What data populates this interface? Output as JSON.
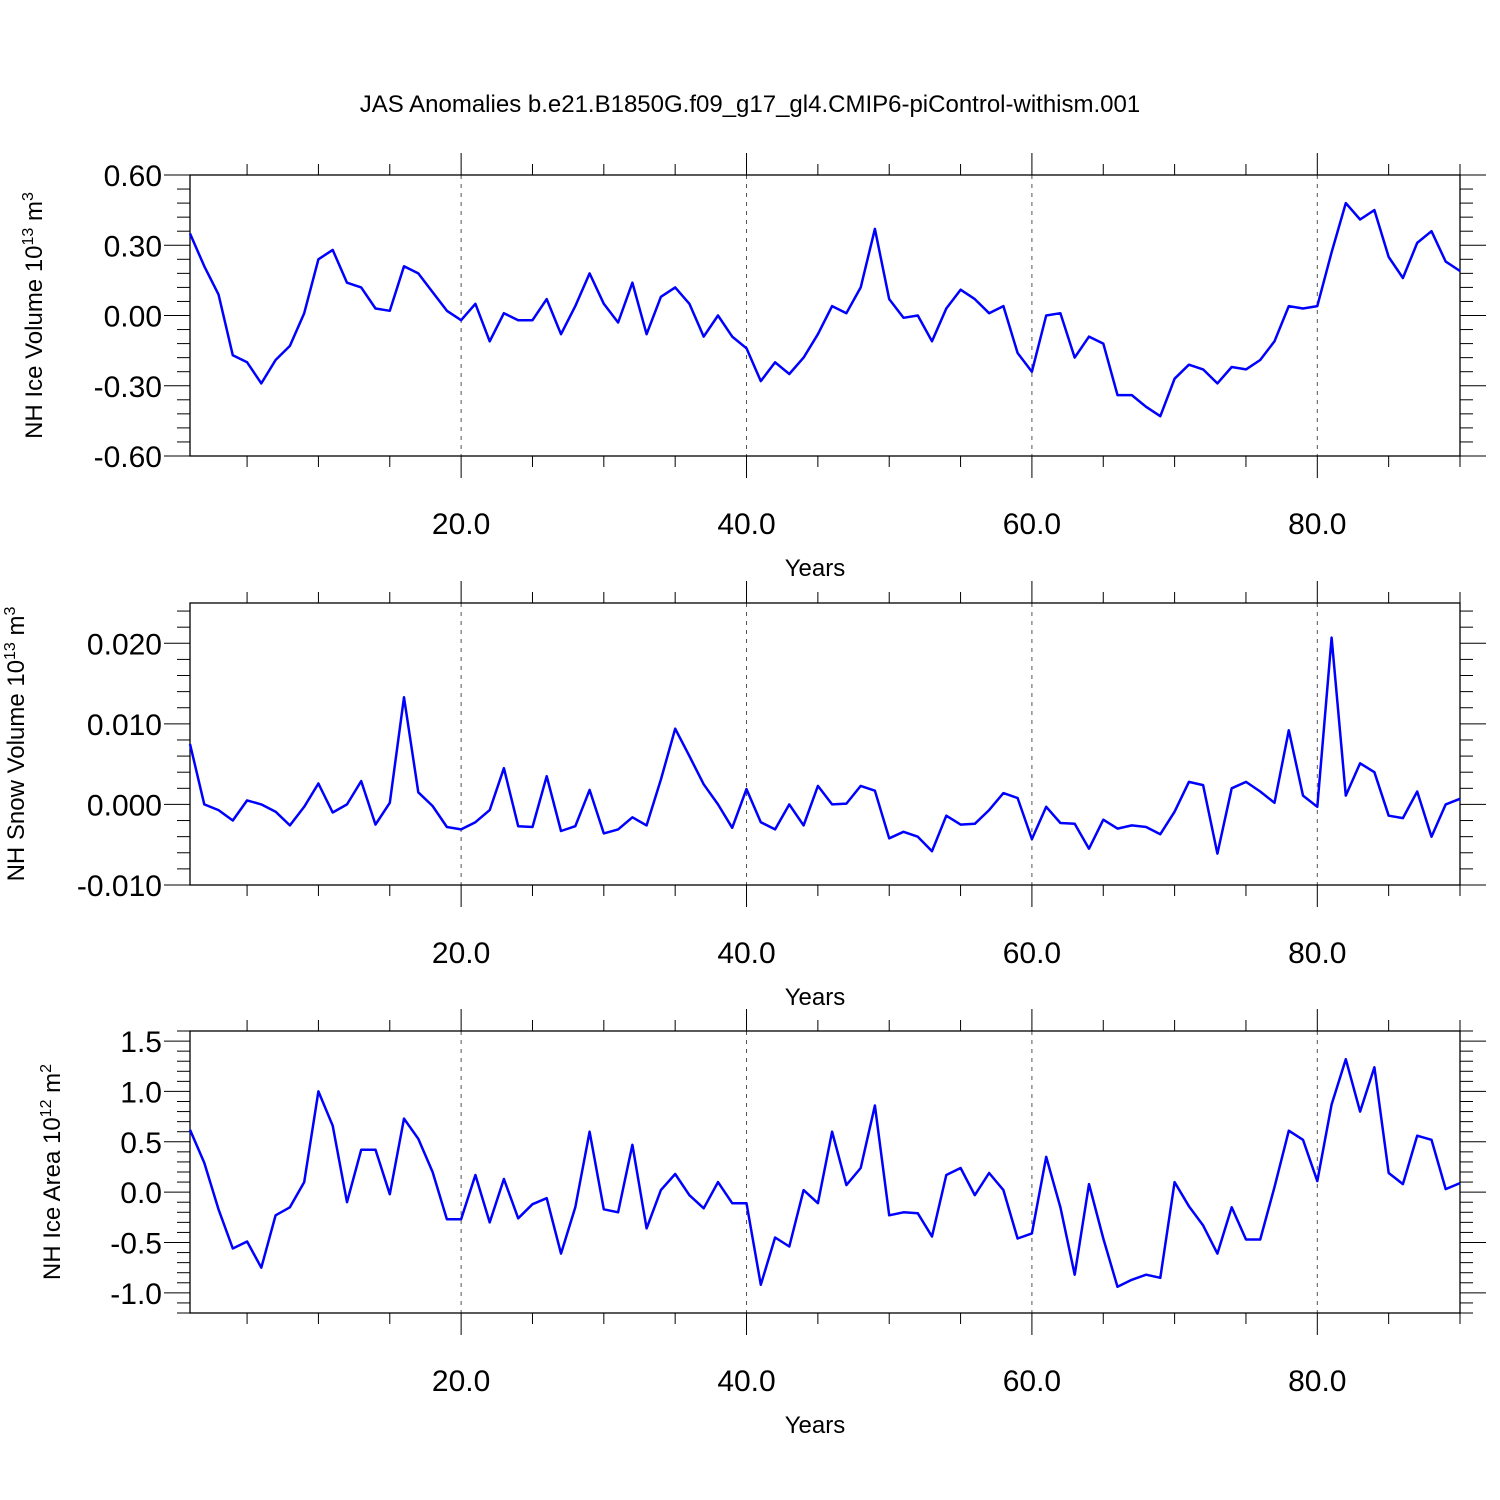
{
  "title": "JAS Anomalies b.e21.B1850G.f09_g17_gl4.CMIP6-piControl-withism.001",
  "colors": {
    "line": "#0000ff",
    "frame": "#000000",
    "grid": "#555555"
  },
  "chart_data": [
    {
      "type": "line",
      "xlabel": "Years",
      "ylabel": {
        "main": "NH Ice Volume 10",
        "exp": "13",
        "unit": " m",
        "unit_exp": "3"
      },
      "xlim": [
        1,
        90
      ],
      "ylim": [
        -0.6,
        0.6
      ],
      "xticks": [
        20,
        40,
        60,
        80
      ],
      "xtick_labels": [
        "20.0",
        "40.0",
        "60.0",
        "80.0"
      ],
      "yticks": [
        -0.6,
        -0.3,
        0.0,
        0.3,
        0.6
      ],
      "ytick_labels": [
        "-0.60",
        "-0.30",
        "0.00",
        "0.30",
        "0.60"
      ],
      "grid": "vertical dashed at x ticks",
      "series": [
        {
          "x_start": 1,
          "x_step": 1,
          "values": [
            0.35,
            0.21,
            0.09,
            -0.17,
            -0.2,
            -0.29,
            -0.19,
            -0.13,
            0.01,
            0.24,
            0.28,
            0.14,
            0.12,
            0.03,
            0.02,
            0.21,
            0.18,
            0.1,
            0.02,
            -0.02,
            0.05,
            -0.11,
            0.01,
            -0.02,
            -0.02,
            0.07,
            -0.08,
            0.04,
            0.18,
            0.05,
            -0.03,
            0.14,
            -0.08,
            0.08,
            0.12,
            0.05,
            -0.09,
            0.0,
            -0.09,
            -0.14,
            -0.28,
            -0.2,
            -0.25,
            -0.18,
            -0.08,
            0.04,
            0.01,
            0.12,
            0.37,
            0.07,
            -0.01,
            0.0,
            -0.11,
            0.03,
            0.11,
            0.07,
            0.01,
            0.04,
            -0.16,
            -0.24,
            0.0,
            0.01,
            -0.18,
            -0.09,
            -0.12,
            -0.34,
            -0.34,
            -0.39,
            -0.43,
            -0.27,
            -0.21,
            -0.23,
            -0.29,
            -0.22,
            -0.23,
            -0.19,
            -0.11,
            0.04,
            0.03,
            0.04,
            0.27,
            0.48,
            0.41,
            0.45,
            0.25,
            0.16,
            0.31,
            0.36,
            0.23,
            0.19
          ]
        }
      ]
    },
    {
      "type": "line",
      "xlabel": "Years",
      "ylabel": {
        "main": "NH Snow Volume 10",
        "exp": "13",
        "unit": " m",
        "unit_exp": "3"
      },
      "xlim": [
        1,
        90
      ],
      "ylim": [
        -0.01,
        0.025
      ],
      "xticks": [
        20,
        40,
        60,
        80
      ],
      "xtick_labels": [
        "20.0",
        "40.0",
        "60.0",
        "80.0"
      ],
      "yticks": [
        -0.01,
        0.0,
        0.01,
        0.02
      ],
      "ytick_labels": [
        "-0.010",
        "0.000",
        "0.010",
        "0.020"
      ],
      "grid": "vertical dashed at x ticks",
      "series": [
        {
          "x_start": 1,
          "x_step": 1,
          "values": [
            0.0075,
            0.0,
            -0.0007,
            -0.002,
            0.0005,
            0.0,
            -0.0009,
            -0.0026,
            -0.0003,
            0.0026,
            -0.001,
            0.0,
            0.0029,
            -0.0025,
            0.0002,
            0.0133,
            0.0015,
            -0.0002,
            -0.0028,
            -0.0031,
            -0.0022,
            -0.0007,
            0.0045,
            -0.0027,
            -0.0028,
            0.0035,
            -0.0033,
            -0.0027,
            0.0018,
            -0.0036,
            -0.0031,
            -0.0016,
            -0.0026,
            0.0031,
            0.0094,
            0.006,
            0.0025,
            0.0,
            -0.0029,
            0.0019,
            -0.0022,
            -0.0031,
            0.0,
            -0.0026,
            0.0023,
            0.0,
            0.0001,
            0.0023,
            0.0017,
            -0.0042,
            -0.0034,
            -0.004,
            -0.0058,
            -0.0014,
            -0.0025,
            -0.0024,
            -0.0007,
            0.0014,
            0.0008,
            -0.0043,
            -0.0003,
            -0.0023,
            -0.0024,
            -0.0055,
            -0.0019,
            -0.003,
            -0.0026,
            -0.0028,
            -0.0037,
            -0.0009,
            0.0028,
            0.0024,
            -0.0061,
            0.002,
            0.0028,
            0.0016,
            0.0002,
            0.0092,
            0.0011,
            -0.0003,
            0.0207,
            0.0011,
            0.0051,
            0.004,
            -0.0014,
            -0.0017,
            0.0016,
            -0.004,
            0.0,
            0.0007
          ]
        }
      ]
    },
    {
      "type": "line",
      "xlabel": "Years",
      "ylabel": {
        "main": "NH Ice Area 10",
        "exp": "12",
        "unit": " m",
        "unit_exp": "2"
      },
      "xlim": [
        1,
        90
      ],
      "ylim": [
        -1.2,
        1.6
      ],
      "xticks": [
        20,
        40,
        60,
        80
      ],
      "xtick_labels": [
        "20.0",
        "40.0",
        "60.0",
        "80.0"
      ],
      "yticks": [
        -1.0,
        -0.5,
        0.0,
        0.5,
        1.0,
        1.5
      ],
      "ytick_labels": [
        "-1.0",
        "-0.5",
        "0.0",
        "0.5",
        "1.0",
        "1.5"
      ],
      "grid": "vertical dashed at x ticks",
      "series": [
        {
          "x_start": 1,
          "x_step": 1,
          "values": [
            0.62,
            0.29,
            -0.17,
            -0.56,
            -0.49,
            -0.75,
            -0.23,
            -0.15,
            0.1,
            1.0,
            0.66,
            -0.1,
            0.42,
            0.42,
            -0.02,
            0.73,
            0.53,
            0.2,
            -0.27,
            -0.27,
            0.17,
            -0.3,
            0.13,
            -0.26,
            -0.12,
            -0.06,
            -0.61,
            -0.15,
            0.6,
            -0.17,
            -0.2,
            0.47,
            -0.36,
            0.02,
            0.18,
            -0.03,
            -0.16,
            0.1,
            -0.11,
            -0.11,
            -0.92,
            -0.45,
            -0.54,
            0.02,
            -0.11,
            0.6,
            0.07,
            0.24,
            0.86,
            -0.23,
            -0.2,
            -0.21,
            -0.44,
            0.17,
            0.24,
            -0.03,
            0.19,
            0.02,
            -0.46,
            -0.41,
            0.35,
            -0.15,
            -0.82,
            0.08,
            -0.46,
            -0.94,
            -0.87,
            -0.82,
            -0.85,
            0.1,
            -0.14,
            -0.33,
            -0.61,
            -0.15,
            -0.47,
            -0.47,
            0.05,
            0.61,
            0.52,
            0.11,
            0.87,
            1.32,
            0.8,
            1.24,
            0.19,
            0.08,
            0.56,
            0.52,
            0.03,
            0.09
          ]
        }
      ]
    }
  ]
}
